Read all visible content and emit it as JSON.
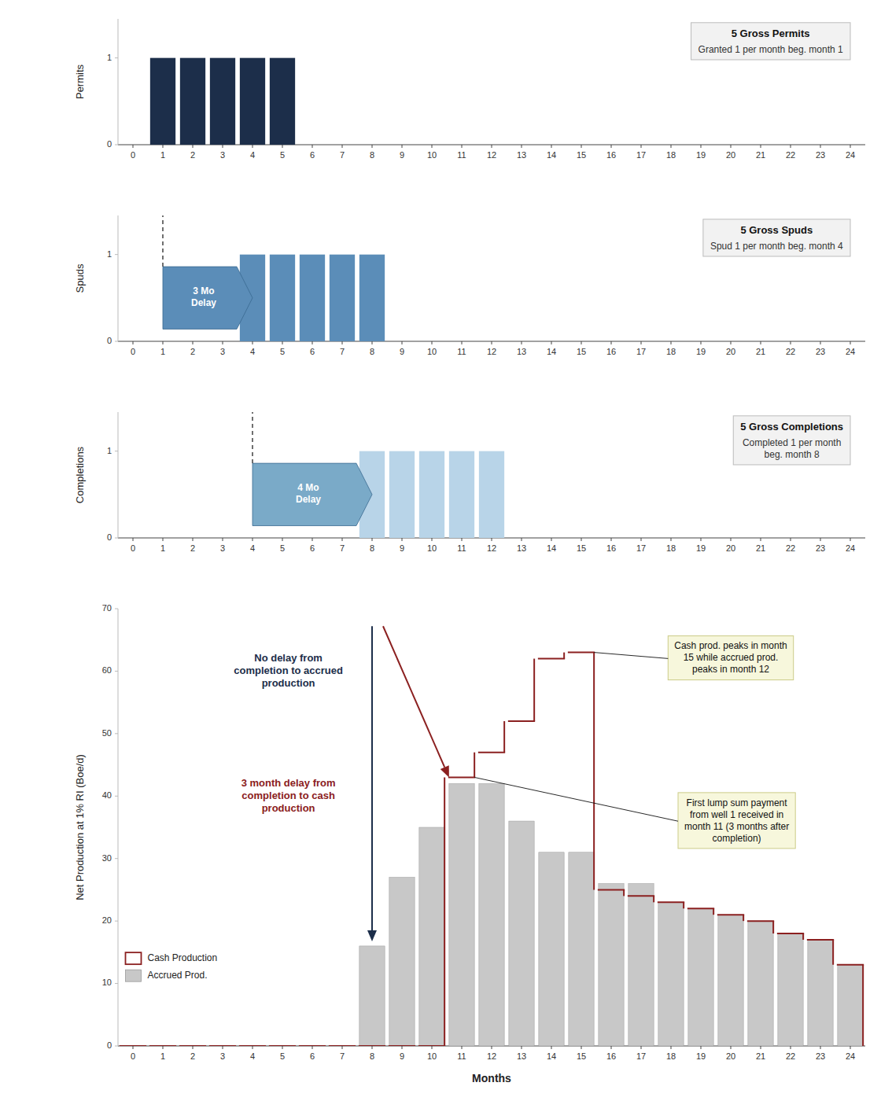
{
  "chart_data": [
    {
      "type": "bar",
      "title": "5 Gross Permits",
      "subtitle": "Granted 1 per month beg. month 1",
      "ylabel": "Permits",
      "x": [
        1,
        2,
        3,
        4,
        5
      ],
      "values": [
        1,
        1,
        1,
        1,
        1
      ],
      "color": "#1c2e4a",
      "xlim": [
        -0.5,
        24.5
      ],
      "xticks": [
        0,
        1,
        2,
        3,
        4,
        5,
        6,
        7,
        8,
        9,
        10,
        11,
        12,
        13,
        14,
        15,
        16,
        17,
        18,
        19,
        20,
        21,
        22,
        23,
        24
      ],
      "ylim": [
        0,
        1.45
      ],
      "yticks": [
        0,
        1
      ]
    },
    {
      "type": "bar",
      "title": "5 Gross Spuds",
      "subtitle": "Spud 1 per month beg. month 4",
      "ylabel": "Spuds",
      "x": [
        4,
        5,
        6,
        7,
        8
      ],
      "values": [
        1,
        1,
        1,
        1,
        1
      ],
      "color": "#5b8db8",
      "xlim": [
        -0.5,
        24.5
      ],
      "xticks": [
        0,
        1,
        2,
        3,
        4,
        5,
        6,
        7,
        8,
        9,
        10,
        11,
        12,
        13,
        14,
        15,
        16,
        17,
        18,
        19,
        20,
        21,
        22,
        23,
        24
      ],
      "ylim": [
        0,
        1.45
      ],
      "yticks": [
        0,
        1
      ],
      "annotations": [
        {
          "text": "3 Mo\nDelay",
          "x_start": 1,
          "x_end": 4,
          "color": "#5b8db8"
        }
      ]
    },
    {
      "type": "bar",
      "title": "5 Gross Completions",
      "subtitle": "Completed 1 per month\nbeg. month 8",
      "ylabel": "Completions",
      "x": [
        8,
        9,
        10,
        11,
        12
      ],
      "values": [
        1,
        1,
        1,
        1,
        1
      ],
      "color": "#b8d4e8",
      "xlim": [
        -0.5,
        24.5
      ],
      "xticks": [
        0,
        1,
        2,
        3,
        4,
        5,
        6,
        7,
        8,
        9,
        10,
        11,
        12,
        13,
        14,
        15,
        16,
        17,
        18,
        19,
        20,
        21,
        22,
        23,
        24
      ],
      "ylim": [
        0,
        1.45
      ],
      "yticks": [
        0,
        1
      ],
      "annotations": [
        {
          "text": "4 Mo\nDelay",
          "x_start": 4,
          "x_end": 8,
          "color": "#7aaac8"
        }
      ]
    },
    {
      "type": "bar",
      "xlabel": "Months",
      "ylabel": "Net Production at 1% RI (Boe/d)",
      "x": [
        0,
        1,
        2,
        3,
        4,
        5,
        6,
        7,
        8,
        9,
        10,
        11,
        12,
        13,
        14,
        15,
        16,
        17,
        18,
        19,
        20,
        21,
        22,
        23,
        24
      ],
      "series": [
        {
          "name": "Accrued Prod.",
          "type": "bar",
          "color": "#c8c8c8",
          "values": [
            0,
            0,
            0,
            0,
            0,
            0,
            0,
            0,
            16,
            27,
            35,
            42,
            42,
            36,
            31,
            31,
            26,
            26,
            23,
            22,
            21,
            20,
            18,
            17,
            13
          ]
        },
        {
          "name": "Cash Production",
          "type": "line",
          "line_style": "step",
          "color": "#8b2020",
          "values": [
            0,
            0,
            0,
            0,
            0,
            0,
            0,
            0,
            0,
            0,
            0,
            43,
            47,
            52,
            62,
            63,
            25,
            24,
            23,
            22,
            21,
            20,
            18,
            17,
            13
          ]
        }
      ],
      "xlim": [
        -0.5,
        24.5
      ],
      "xticks": [
        0,
        1,
        2,
        3,
        4,
        5,
        6,
        7,
        8,
        9,
        10,
        11,
        12,
        13,
        14,
        15,
        16,
        17,
        18,
        19,
        20,
        21,
        22,
        23,
        24
      ],
      "ylim": [
        0,
        70
      ],
      "yticks": [
        0,
        10,
        20,
        30,
        40,
        50,
        60,
        70
      ],
      "legend": "lower left",
      "annotations": [
        {
          "text": "No delay from\ncompletion to accrued\nproduction",
          "x": 8,
          "color": "#1c2e4a"
        },
        {
          "text": "3 month delay from\ncompletion to cash\nproduction",
          "x": 11,
          "color": "#8b2020"
        },
        {
          "text": "Cash prod. peaks in month\n15 while accrued prod.\npeaks in month 12",
          "x": 15
        },
        {
          "text": "First lump sum payment\nfrom well 1 received in\nmonth 11 (3 months after\ncompletion)",
          "x": 11
        }
      ]
    }
  ]
}
